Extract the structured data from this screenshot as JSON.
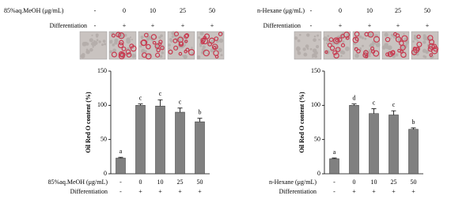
{
  "chart_data": [
    {
      "type": "bar",
      "treatment_label": "85%aq.MeOH (μg/mL)",
      "categories": [
        "-",
        "0",
        "10",
        "25",
        "50"
      ],
      "differentiation_label": "Differentiation",
      "differentiation": [
        "-",
        "+",
        "+",
        "+",
        "+"
      ],
      "ylabel": "Oil Red O content (%)",
      "values": [
        23,
        100,
        99,
        90,
        76
      ],
      "errors": [
        1,
        2,
        9,
        6,
        5
      ],
      "significance": [
        "a",
        "c",
        "c",
        "c",
        "b"
      ],
      "color": "#808080",
      "ylim": [
        0,
        150
      ],
      "yticks": [
        0,
        50,
        100,
        150
      ]
    },
    {
      "type": "bar",
      "treatment_label": "n-Hexane (μg/mL)",
      "categories": [
        "-",
        "0",
        "10",
        "25",
        "50"
      ],
      "differentiation_label": "Differentiation",
      "differentiation": [
        "-",
        "+",
        "+",
        "+",
        "+"
      ],
      "ylabel": "Oil Red O content (%)",
      "values": [
        22,
        100,
        88,
        86,
        65
      ],
      "errors": [
        1,
        2,
        7,
        6,
        2
      ],
      "significance": [
        "a",
        "d",
        "c",
        "c",
        "b"
      ],
      "color": "#808080",
      "ylim": [
        0,
        150
      ],
      "yticks": [
        0,
        50,
        100,
        150
      ]
    }
  ]
}
